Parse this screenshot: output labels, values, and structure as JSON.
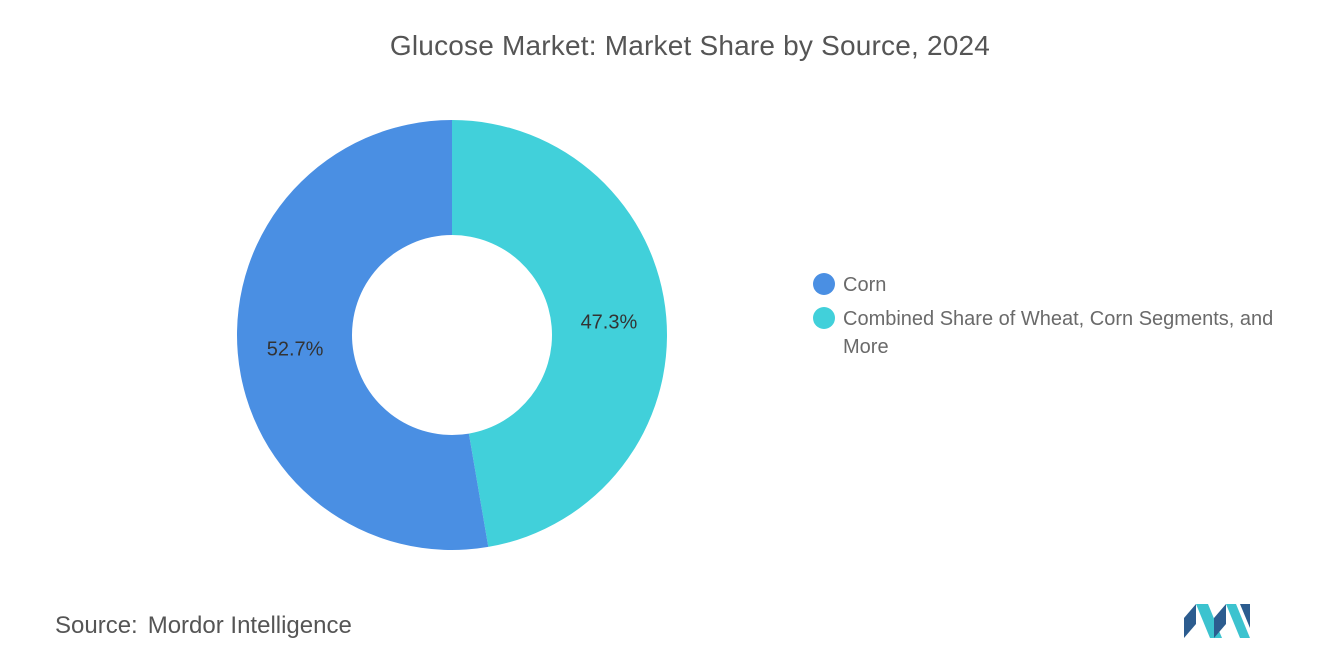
{
  "chart_data": {
    "type": "pie",
    "title": "Glucose Market: Market Share by Source, 2024",
    "donut": true,
    "series": [
      {
        "name": "Market Share by Source",
        "categories": [
          "Combined Share of Wheat, Corn Segments, and More",
          "Corn"
        ],
        "values": [
          47.3,
          52.7
        ],
        "labels": [
          "47.3%",
          "52.7%"
        ],
        "colors": [
          "#41d0da",
          "#4a8fe3"
        ]
      }
    ],
    "legend": {
      "position": "right",
      "entries": [
        {
          "label": "Corn",
          "color": "#4a8fe3"
        },
        {
          "label": "Combined Share of Wheat, Corn Segments, and More",
          "color": "#41d0da"
        }
      ]
    }
  },
  "source": {
    "key": "Source:",
    "value": "Mordor Intelligence"
  },
  "logo": {
    "icon": "mordor-intelligence-logo-icon",
    "colors": [
      "#2c5c8f",
      "#3cc3cf"
    ]
  }
}
